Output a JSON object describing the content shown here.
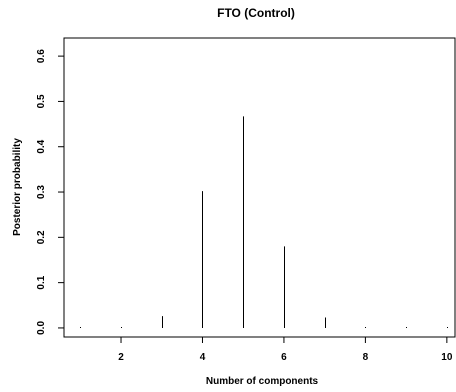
{
  "chart_data": {
    "type": "bar",
    "title": "FTO (Control)",
    "xlabel": "Number of components",
    "ylabel": "Posterior probability",
    "x": [
      1,
      2,
      3,
      4,
      5,
      6,
      7,
      8,
      9,
      10
    ],
    "values": [
      0.001,
      0.001,
      0.026,
      0.302,
      0.467,
      0.18,
      0.023,
      0.001,
      0.001,
      0.001
    ],
    "xlim": [
      0.6,
      10.2
    ],
    "ylim": [
      -0.02,
      0.64
    ],
    "xticks": [
      2,
      4,
      6,
      8,
      10
    ],
    "yticks": [
      0.0,
      0.1,
      0.2,
      0.3,
      0.4,
      0.5,
      0.6
    ],
    "xtick_labels": [
      "2",
      "4",
      "6",
      "8",
      "10"
    ],
    "ytick_labels": [
      "0.0",
      "0.1",
      "0.2",
      "0.3",
      "0.4",
      "0.5",
      "0.6"
    ],
    "grid": false,
    "legend": false,
    "mark_style": "vertical lines (histogram-type spikes)",
    "color": "#000000"
  }
}
